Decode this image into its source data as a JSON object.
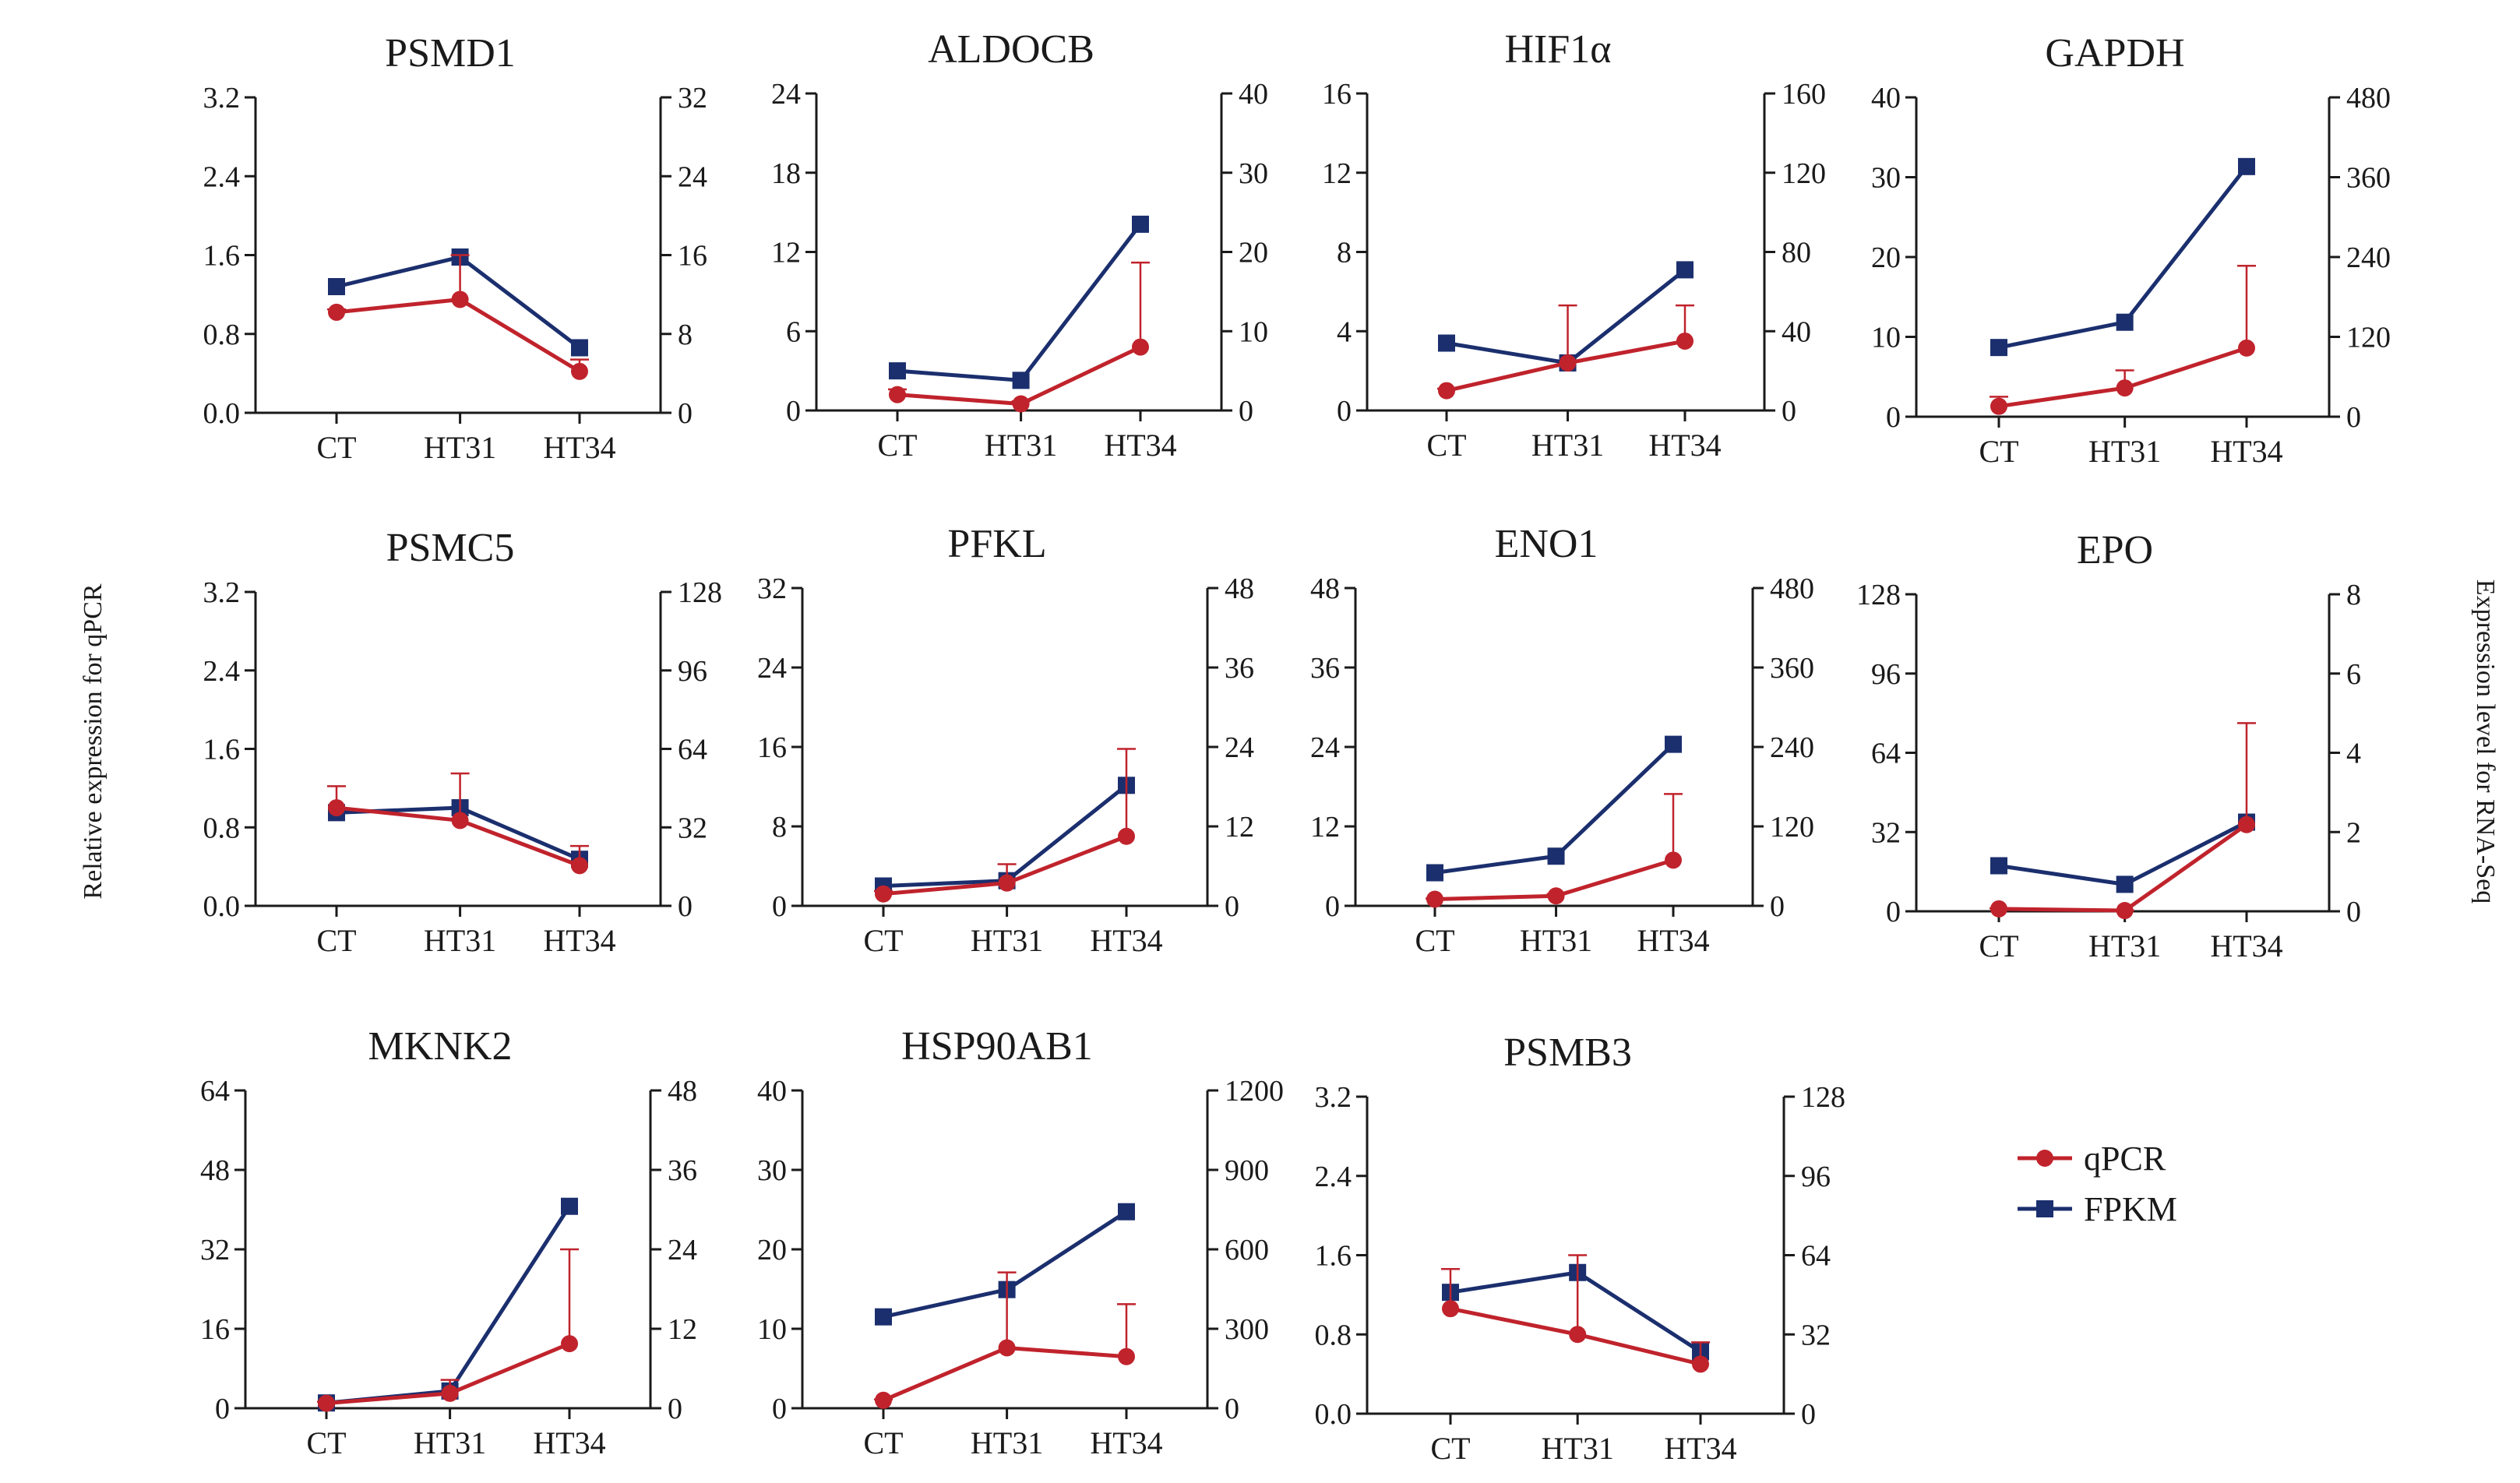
{
  "y_left_label": "Relative expression for qPCR",
  "y_right_label": "Expression level for RNA-Seq",
  "legend": [
    {
      "name": "qPCR",
      "color": "#c0232c",
      "marker": "circle"
    },
    {
      "name": "FPKM",
      "color": "#1b2f6e",
      "marker": "square"
    }
  ],
  "chart_data": [
    {
      "type": "line",
      "title": "PSMD1",
      "categories": [
        "CT",
        "HT31",
        "HT34"
      ],
      "left_ticks": [
        "0.0",
        "0.8",
        "1.6",
        "2.4",
        "3.2"
      ],
      "right_ticks": [
        "0",
        "8",
        "16",
        "24",
        "32"
      ],
      "ylim_left": [
        0,
        3.2
      ],
      "ylim_right": [
        0,
        32
      ],
      "series": [
        {
          "name": "qPCR",
          "axis": "left",
          "values": [
            1.02,
            1.15,
            0.42
          ],
          "err": [
            0.03,
            0.45,
            0.12
          ]
        },
        {
          "name": "FPKM",
          "axis": "right",
          "values": [
            12.8,
            15.8,
            6.6
          ]
        }
      ]
    },
    {
      "type": "line",
      "title": "ALDOCB",
      "categories": [
        "CT",
        "HT31",
        "HT34"
      ],
      "left_ticks": [
        "0",
        "6",
        "12",
        "18",
        "24"
      ],
      "right_ticks": [
        "0",
        "10",
        "20",
        "30",
        "40"
      ],
      "ylim_left": [
        0,
        24
      ],
      "ylim_right": [
        0,
        40
      ],
      "series": [
        {
          "name": "qPCR",
          "axis": "left",
          "values": [
            1.2,
            0.5,
            4.8
          ],
          "err": [
            0.4,
            0.2,
            6.4
          ]
        },
        {
          "name": "FPKM",
          "axis": "right",
          "values": [
            5.0,
            3.8,
            23.5
          ]
        }
      ]
    },
    {
      "type": "line",
      "title": "HIF1α",
      "categories": [
        "CT",
        "HT31",
        "HT34"
      ],
      "left_ticks": [
        "0",
        "4",
        "8",
        "12",
        "16"
      ],
      "right_ticks": [
        "0",
        "40",
        "80",
        "120",
        "160"
      ],
      "ylim_left": [
        0,
        16
      ],
      "ylim_right": [
        0,
        160
      ],
      "series": [
        {
          "name": "qPCR",
          "axis": "left",
          "values": [
            1.0,
            2.4,
            3.5
          ],
          "err": [
            0.1,
            2.9,
            1.8
          ]
        },
        {
          "name": "FPKM",
          "axis": "right",
          "values": [
            34,
            24,
            71
          ]
        }
      ]
    },
    {
      "type": "line",
      "title": "GAPDH",
      "categories": [
        "CT",
        "HT31",
        "HT34"
      ],
      "left_ticks": [
        "0",
        "10",
        "20",
        "30",
        "40"
      ],
      "right_ticks": [
        "0",
        "120",
        "240",
        "360",
        "480"
      ],
      "ylim_left": [
        0,
        40
      ],
      "ylim_right": [
        0,
        480
      ],
      "series": [
        {
          "name": "qPCR",
          "axis": "left",
          "values": [
            1.3,
            3.6,
            8.6
          ],
          "err": [
            1.2,
            2.2,
            10.3
          ]
        },
        {
          "name": "FPKM",
          "axis": "right",
          "values": [
            104,
            142,
            376
          ]
        }
      ]
    },
    {
      "type": "line",
      "title": "PSMC5",
      "categories": [
        "CT",
        "HT31",
        "HT34"
      ],
      "left_ticks": [
        "0.0",
        "0.8",
        "1.6",
        "2.4",
        "3.2"
      ],
      "right_ticks": [
        "0",
        "32",
        "64",
        "96",
        "128"
      ],
      "ylim_left": [
        0,
        3.2
      ],
      "ylim_right": [
        0,
        128
      ],
      "series": [
        {
          "name": "qPCR",
          "axis": "left",
          "values": [
            1.0,
            0.87,
            0.41
          ],
          "err": [
            0.22,
            0.48,
            0.2
          ]
        },
        {
          "name": "FPKM",
          "axis": "right",
          "values": [
            38,
            40,
            19
          ]
        }
      ]
    },
    {
      "type": "line",
      "title": "PFKL",
      "categories": [
        "CT",
        "HT31",
        "HT34"
      ],
      "left_ticks": [
        "0",
        "8",
        "16",
        "24",
        "32"
      ],
      "right_ticks": [
        "0",
        "12",
        "24",
        "36",
        "48"
      ],
      "ylim_left": [
        0,
        32
      ],
      "ylim_right": [
        0,
        48
      ],
      "series": [
        {
          "name": "qPCR",
          "axis": "left",
          "values": [
            1.2,
            2.3,
            7.0
          ],
          "err": [
            0.3,
            1.9,
            8.8
          ]
        },
        {
          "name": "FPKM",
          "axis": "right",
          "values": [
            3.0,
            3.8,
            18.2
          ]
        }
      ]
    },
    {
      "type": "line",
      "title": "ENO1",
      "categories": [
        "CT",
        "HT31",
        "HT34"
      ],
      "left_ticks": [
        "0",
        "12",
        "24",
        "36",
        "48"
      ],
      "right_ticks": [
        "0",
        "120",
        "240",
        "360",
        "480"
      ],
      "ylim_left": [
        0,
        48
      ],
      "ylim_right": [
        0,
        480
      ],
      "series": [
        {
          "name": "qPCR",
          "axis": "left",
          "values": [
            1.0,
            1.5,
            6.9
          ],
          "err": [
            0.1,
            0.3,
            10.0
          ]
        },
        {
          "name": "FPKM",
          "axis": "right",
          "values": [
            50,
            75,
            244
          ]
        }
      ]
    },
    {
      "type": "line",
      "title": "EPO",
      "categories": [
        "CT",
        "HT31",
        "HT34"
      ],
      "left_ticks": [
        "0",
        "32",
        "64",
        "96",
        "128"
      ],
      "right_ticks": [
        "0",
        "2",
        "4",
        "6",
        "8"
      ],
      "ylim_left": [
        0,
        128
      ],
      "ylim_right": [
        0,
        8
      ],
      "series": [
        {
          "name": "qPCR",
          "axis": "left",
          "values": [
            1.0,
            0.3,
            35.0
          ],
          "err": [
            0.2,
            0.1,
            41.0
          ]
        },
        {
          "name": "FPKM",
          "axis": "right",
          "values": [
            1.15,
            0.68,
            2.25
          ]
        }
      ]
    },
    {
      "type": "line",
      "title": "MKNK2",
      "categories": [
        "CT",
        "HT31",
        "HT34"
      ],
      "left_ticks": [
        "0",
        "16",
        "32",
        "48",
        "64"
      ],
      "right_ticks": [
        "0",
        "12",
        "24",
        "36",
        "48"
      ],
      "ylim_left": [
        0,
        64
      ],
      "ylim_right": [
        0,
        48
      ],
      "series": [
        {
          "name": "qPCR",
          "axis": "left",
          "values": [
            1.0,
            3.0,
            13.0
          ],
          "err": [
            0.3,
            2.7,
            19.0
          ]
        },
        {
          "name": "FPKM",
          "axis": "right",
          "values": [
            0.8,
            2.6,
            30.5
          ]
        }
      ]
    },
    {
      "type": "line",
      "title": "HSP90AB1",
      "categories": [
        "CT",
        "HT31",
        "HT34"
      ],
      "left_ticks": [
        "0",
        "10",
        "20",
        "30",
        "40"
      ],
      "right_ticks": [
        "0",
        "300",
        "600",
        "900",
        "1200"
      ],
      "ylim_left": [
        0,
        40
      ],
      "ylim_right": [
        0,
        1200
      ],
      "series": [
        {
          "name": "qPCR",
          "axis": "left",
          "values": [
            1.0,
            7.6,
            6.5
          ],
          "err": [
            0.1,
            9.5,
            6.6
          ]
        },
        {
          "name": "FPKM",
          "axis": "right",
          "values": [
            345,
            448,
            742
          ]
        }
      ]
    },
    {
      "type": "line",
      "title": "PSMB3",
      "categories": [
        "CT",
        "HT31",
        "HT34"
      ],
      "left_ticks": [
        "0.0",
        "0.8",
        "1.6",
        "2.4",
        "3.2"
      ],
      "right_ticks": [
        "0",
        "32",
        "64",
        "96",
        "128"
      ],
      "ylim_left": [
        0,
        3.2
      ],
      "ylim_right": [
        0,
        128
      ],
      "series": [
        {
          "name": "qPCR",
          "axis": "left",
          "values": [
            1.06,
            0.8,
            0.5
          ],
          "err": [
            0.4,
            0.8,
            0.22
          ]
        },
        {
          "name": "FPKM",
          "axis": "right",
          "values": [
            49,
            57,
            25
          ]
        }
      ]
    }
  ]
}
